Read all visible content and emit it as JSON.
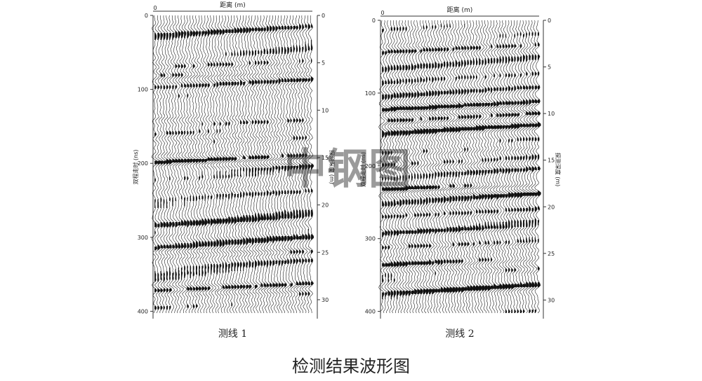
{
  "figure_title": "检测结果波形图",
  "watermark_text": "中钢图",
  "chart_data": [
    {
      "type": "line",
      "caption": "测线 1",
      "top_axis_label": "距离 (m)",
      "left_axis_label": "双程走时 (ns)",
      "right_axis_label": "探测深度 (m)",
      "top_ticks": [
        "0"
      ],
      "left_ticks": [
        "0",
        "100",
        "200",
        "300",
        "400"
      ],
      "right_ticks": [
        "0",
        "5",
        "10",
        "15",
        "20",
        "25",
        "30"
      ],
      "time_range_ns": [
        0,
        410
      ],
      "depth_range_m": [
        0,
        32
      ],
      "grid": false
    },
    {
      "type": "line",
      "caption": "测线 2",
      "top_axis_label": "距离 (m)",
      "left_axis_label": "双程走时 (ns)",
      "right_axis_label": "探测深度 (m)",
      "top_ticks": [
        "0"
      ],
      "left_ticks": [
        "0",
        "100",
        "200",
        "300",
        "400"
      ],
      "right_ticks": [
        "0",
        "5",
        "10",
        "15",
        "20",
        "25",
        "30"
      ],
      "time_range_ns": [
        0,
        410
      ],
      "depth_range_m": [
        0,
        32
      ],
      "grid": false
    }
  ]
}
